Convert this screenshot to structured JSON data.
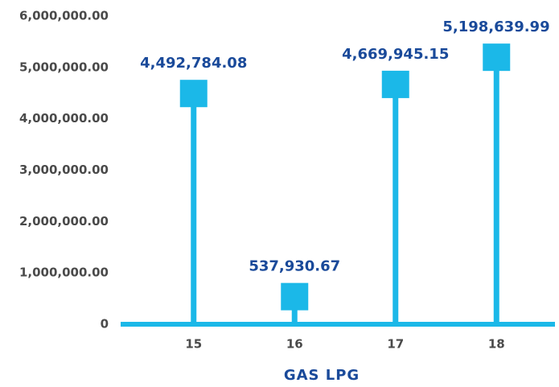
{
  "chart_data": {
    "type": "lollipop",
    "x_label": "GAS LPG",
    "categories": [
      "15",
      "16",
      "17",
      "18"
    ],
    "values": [
      4492784.08,
      537930.67,
      4669945.15,
      5198639.99
    ],
    "value_labels": [
      "4,492,784.08",
      "537,930.67",
      "4,669,945.15",
      "5,198,639.99"
    ],
    "color": "#1bb8e8",
    "label_color": "#1a4a9a",
    "ylim": [
      0,
      6000000
    ],
    "yticks": [
      0,
      {
        "value": 1000000,
        "label": "1,000,000.00"
      },
      {
        "value": 2000000,
        "label": "2,000,000.00"
      },
      {
        "value": 3000000,
        "label": "3,000,000.00"
      },
      {
        "value": 4000000,
        "label": "4,000,000.00"
      },
      {
        "value": 5000000,
        "label": "5,000,000.00"
      },
      {
        "value": 6000000,
        "label": "6,000,000.00"
      }
    ],
    "grid": false
  }
}
